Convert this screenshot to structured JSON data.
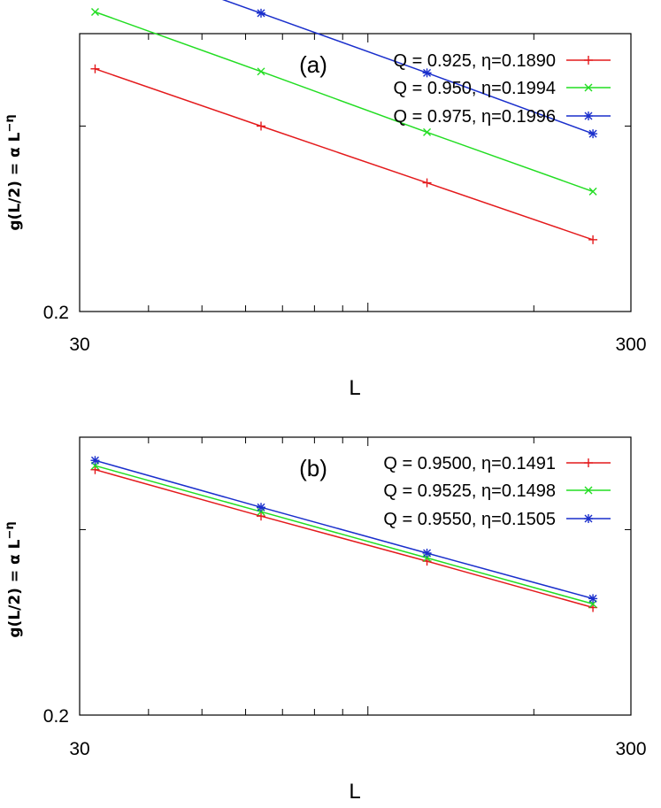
{
  "chart_data": [
    {
      "type": "line",
      "panel_label": "(a)",
      "xlabel": "L",
      "ylabel": "g(L/2) = α L",
      "ylabel_sup": "−η",
      "x_scale": "log",
      "y_scale": "log",
      "xlim": [
        30,
        300
      ],
      "x_ticks": [
        "30",
        "300"
      ],
      "y_ticks": [
        "0.2"
      ],
      "x": [
        32,
        64,
        128,
        256
      ],
      "series": [
        {
          "name": "Q = 0.925, η=0.1890",
          "color": "#e41a1c",
          "marker": "plus",
          "values": [
            0.34,
            0.3,
            0.265,
            0.234
          ]
        },
        {
          "name": "Q = 0.950, η=0.1994",
          "color": "#22dd22",
          "marker": "x",
          "values": [
            0.385,
            0.338,
            0.296,
            0.26
          ]
        },
        {
          "name": "Q = 0.975, η=0.1996",
          "color": "#1a2fcc",
          "marker": "star",
          "values": [
            0.437,
            0.384,
            0.337,
            0.295
          ]
        }
      ]
    },
    {
      "type": "line",
      "panel_label": "(b)",
      "xlabel": "L",
      "ylabel": "g(L/2) = α L",
      "ylabel_sup": "−η",
      "x_scale": "log",
      "y_scale": "log",
      "xlim": [
        30,
        300
      ],
      "x_ticks": [
        "30",
        "300"
      ],
      "y_ticks": [
        "0.2"
      ],
      "x": [
        32,
        64,
        128,
        256
      ],
      "series": [
        {
          "name": "Q = 0.9500, η=0.1491",
          "color": "#e41a1c",
          "marker": "plus",
          "values": [
            0.342,
            0.309,
            0.28,
            0.253
          ]
        },
        {
          "name": "Q = 0.9525, η=0.1498",
          "color": "#22dd22",
          "marker": "x",
          "values": [
            0.345,
            0.312,
            0.282,
            0.255
          ]
        },
        {
          "name": "Q = 0.9550, η=0.1505",
          "color": "#1a2fcc",
          "marker": "star",
          "values": [
            0.349,
            0.315,
            0.285,
            0.258
          ]
        }
      ]
    }
  ]
}
